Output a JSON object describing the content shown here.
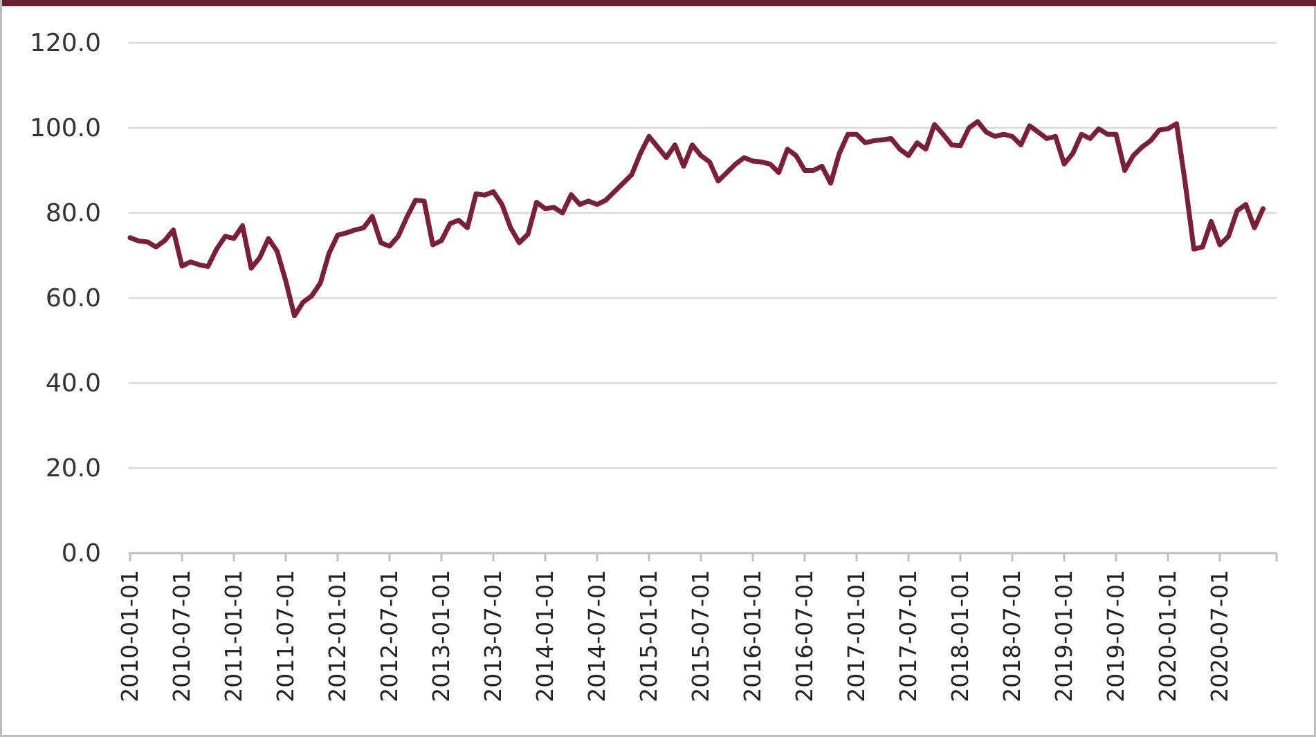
{
  "colors": {
    "line": "#7a1f35",
    "grid": "#d9d9d9",
    "axis": "#bfbfbf",
    "frame_top": "#6b1f2e"
  },
  "chart_data": {
    "type": "line",
    "title": "",
    "xlabel": "",
    "ylabel": "",
    "ylim": [
      0,
      120
    ],
    "y_ticks": [
      "0.0",
      "20.0",
      "40.0",
      "60.0",
      "80.0",
      "100.0",
      "120.0"
    ],
    "x_tick_labels": [
      "2010-01-01",
      "2010-07-01",
      "2011-01-01",
      "2011-07-01",
      "2012-01-01",
      "2012-07-01",
      "2013-01-01",
      "2013-07-01",
      "2014-01-01",
      "2014-07-01",
      "2015-01-01",
      "2015-07-01",
      "2016-01-01",
      "2016-07-01",
      "2017-01-01",
      "2017-07-01",
      "2018-01-01",
      "2018-07-01",
      "2019-01-01",
      "2019-07-01",
      "2020-01-01",
      "2020-07-01"
    ],
    "grid": true,
    "legend": "none",
    "x": [
      "2010-01",
      "2010-02",
      "2010-03",
      "2010-04",
      "2010-05",
      "2010-06",
      "2010-07",
      "2010-08",
      "2010-09",
      "2010-10",
      "2010-11",
      "2010-12",
      "2011-01",
      "2011-02",
      "2011-03",
      "2011-04",
      "2011-05",
      "2011-06",
      "2011-07",
      "2011-08",
      "2011-09",
      "2011-10",
      "2011-11",
      "2011-12",
      "2012-01",
      "2012-02",
      "2012-03",
      "2012-04",
      "2012-05",
      "2012-06",
      "2012-07",
      "2012-08",
      "2012-09",
      "2012-10",
      "2012-11",
      "2012-12",
      "2013-01",
      "2013-02",
      "2013-03",
      "2013-04",
      "2013-05",
      "2013-06",
      "2013-07",
      "2013-08",
      "2013-09",
      "2013-10",
      "2013-11",
      "2013-12",
      "2014-01",
      "2014-02",
      "2014-03",
      "2014-04",
      "2014-05",
      "2014-06",
      "2014-07",
      "2014-08",
      "2014-09",
      "2014-10",
      "2014-11",
      "2014-12",
      "2015-01",
      "2015-02",
      "2015-03",
      "2015-04",
      "2015-05",
      "2015-06",
      "2015-07",
      "2015-08",
      "2015-09",
      "2015-10",
      "2015-11",
      "2015-12",
      "2016-01",
      "2016-02",
      "2016-03",
      "2016-04",
      "2016-05",
      "2016-06",
      "2016-07",
      "2016-08",
      "2016-09",
      "2016-10",
      "2016-11",
      "2016-12",
      "2017-01",
      "2017-02",
      "2017-03",
      "2017-04",
      "2017-05",
      "2017-06",
      "2017-07",
      "2017-08",
      "2017-09",
      "2017-10",
      "2017-11",
      "2017-12",
      "2018-01",
      "2018-02",
      "2018-03",
      "2018-04",
      "2018-05",
      "2018-06",
      "2018-07",
      "2018-08",
      "2018-09",
      "2018-10",
      "2018-11",
      "2018-12",
      "2019-01",
      "2019-02",
      "2019-03",
      "2019-04",
      "2019-05",
      "2019-06",
      "2019-07",
      "2019-08",
      "2019-09",
      "2019-10",
      "2019-11",
      "2019-12",
      "2020-01",
      "2020-02",
      "2020-03",
      "2020-04",
      "2020-05",
      "2020-06",
      "2020-07",
      "2020-08",
      "2020-09",
      "2020-10",
      "2020-11",
      "2020-12"
    ],
    "series": [
      {
        "values": [
          74.2,
          73.4,
          73.2,
          72.0,
          73.5,
          76.0,
          67.5,
          68.5,
          67.8,
          67.4,
          71.5,
          74.5,
          74.0,
          77.0,
          67.0,
          69.5,
          74.0,
          71.0,
          64.0,
          55.8,
          59.0,
          60.5,
          63.5,
          70.5,
          74.8,
          75.3,
          76.0,
          76.5,
          79.2,
          73.0,
          72.2,
          74.5,
          79.0,
          83.0,
          82.8,
          72.5,
          73.5,
          77.5,
          78.3,
          76.5,
          84.5,
          84.2,
          85.0,
          82.0,
          76.5,
          73.0,
          75.0,
          82.5,
          81.0,
          81.3,
          80.0,
          84.3,
          82.0,
          82.8,
          82.0,
          83.0,
          85.0,
          87.0,
          89.0,
          94.0,
          98.0,
          95.5,
          93.0,
          96.0,
          91.0,
          96.0,
          93.5,
          92.0,
          87.5,
          89.5,
          91.5,
          93.0,
          92.2,
          92.0,
          91.5,
          89.5,
          95.0,
          93.5,
          90.0,
          90.0,
          91.0,
          87.0,
          94.0,
          98.5,
          98.5,
          96.5,
          97.0,
          97.2,
          97.5,
          95.0,
          93.5,
          96.5,
          95.0,
          100.8,
          98.5,
          96.0,
          95.8,
          100.0,
          101.5,
          99.0,
          98.0,
          98.5,
          98.0,
          96.0,
          100.5,
          99.0,
          97.5,
          98.0,
          91.5,
          94.0,
          98.5,
          97.5,
          99.8,
          98.5,
          98.5,
          90.0,
          93.5,
          95.5,
          97.0,
          99.5,
          99.8,
          101.0,
          87.0,
          71.5,
          72.0,
          78.0,
          72.5,
          74.5,
          80.5,
          82.0,
          76.5,
          81.0
        ]
      }
    ]
  }
}
